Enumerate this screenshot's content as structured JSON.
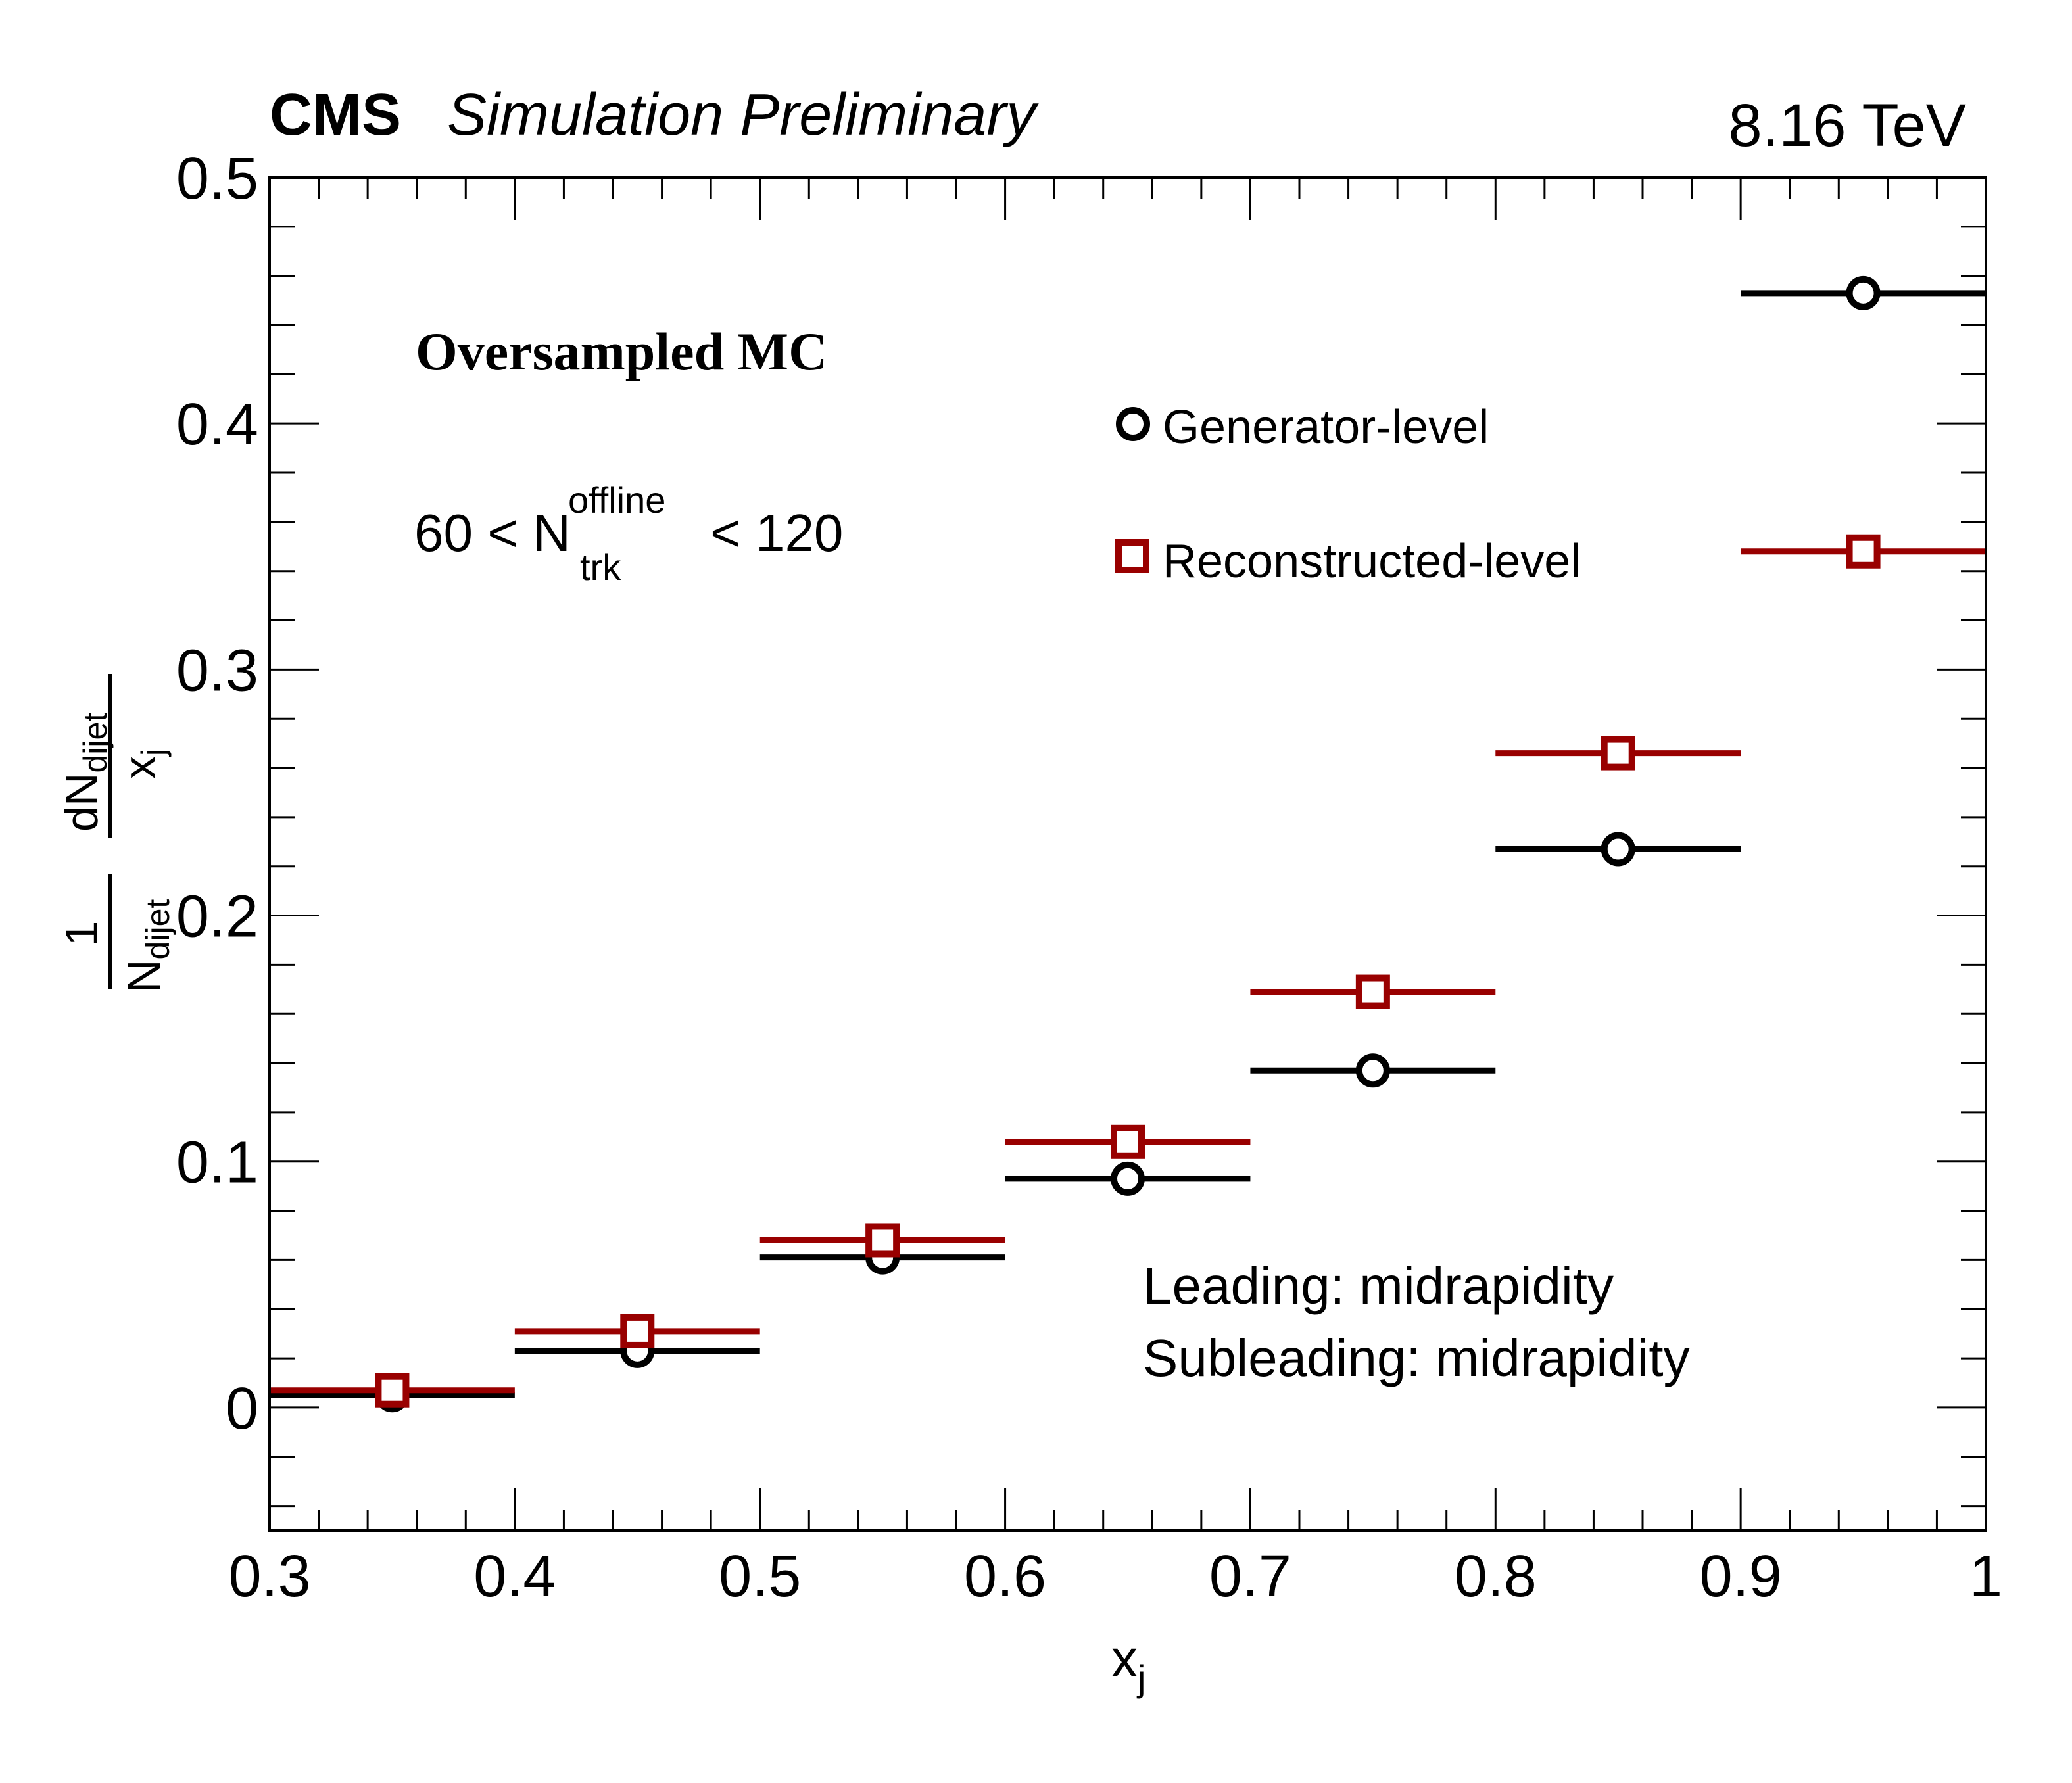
{
  "chart_data": {
    "type": "scatter",
    "experiment": "CMS",
    "status": "Simulation Preliminary",
    "energy": "8.16 TeV",
    "sample_label": "Oversampled MC",
    "selection": {
      "prefix": "60 < N",
      "superscript": "offline",
      "subscript": "trk",
      "suffix": "< 120"
    },
    "region_lines": [
      "Leading: midrapidity",
      "Subleading: midrapidity"
    ],
    "xlabel": {
      "base": "x",
      "sub": "j"
    },
    "ylabel": {
      "one": "1",
      "n_base": "N",
      "n_sub": "dijet",
      "dn_base": "dN",
      "dn_sub": "dijet",
      "x_base": "x",
      "x_sub": "j"
    },
    "xlim": [
      0.3,
      1.0
    ],
    "ylim": [
      -0.05,
      0.5
    ],
    "xticks": [
      0.3,
      0.4,
      0.5,
      0.6,
      0.7,
      0.8,
      0.9,
      1.0
    ],
    "xtick_labels": [
      "0.3",
      "0.4",
      "0.5",
      "0.6",
      "0.7",
      "0.8",
      "0.9",
      "1"
    ],
    "yticks": [
      0,
      0.1,
      0.2,
      0.3,
      0.4,
      0.5
    ],
    "ytick_labels": [
      "0",
      "0.1",
      "0.2",
      "0.3",
      "0.4",
      "0.5"
    ],
    "bin_edges": [
      0.3,
      0.4,
      0.5,
      0.6,
      0.7,
      0.8,
      0.9,
      1.0
    ],
    "series": [
      {
        "name": "Generator-level",
        "marker": "open-circle",
        "color": "#000000",
        "x": [
          0.35,
          0.45,
          0.55,
          0.65,
          0.75,
          0.85,
          0.95
        ],
        "values": [
          0.005,
          0.023,
          0.061,
          0.093,
          0.137,
          0.227,
          0.453
        ]
      },
      {
        "name": "Reconstructed-level",
        "marker": "open-square",
        "color": "#990000",
        "x": [
          0.35,
          0.45,
          0.55,
          0.65,
          0.75,
          0.85,
          0.95
        ],
        "values": [
          0.007,
          0.031,
          0.068,
          0.108,
          0.169,
          0.266,
          0.348
        ]
      }
    ]
  }
}
